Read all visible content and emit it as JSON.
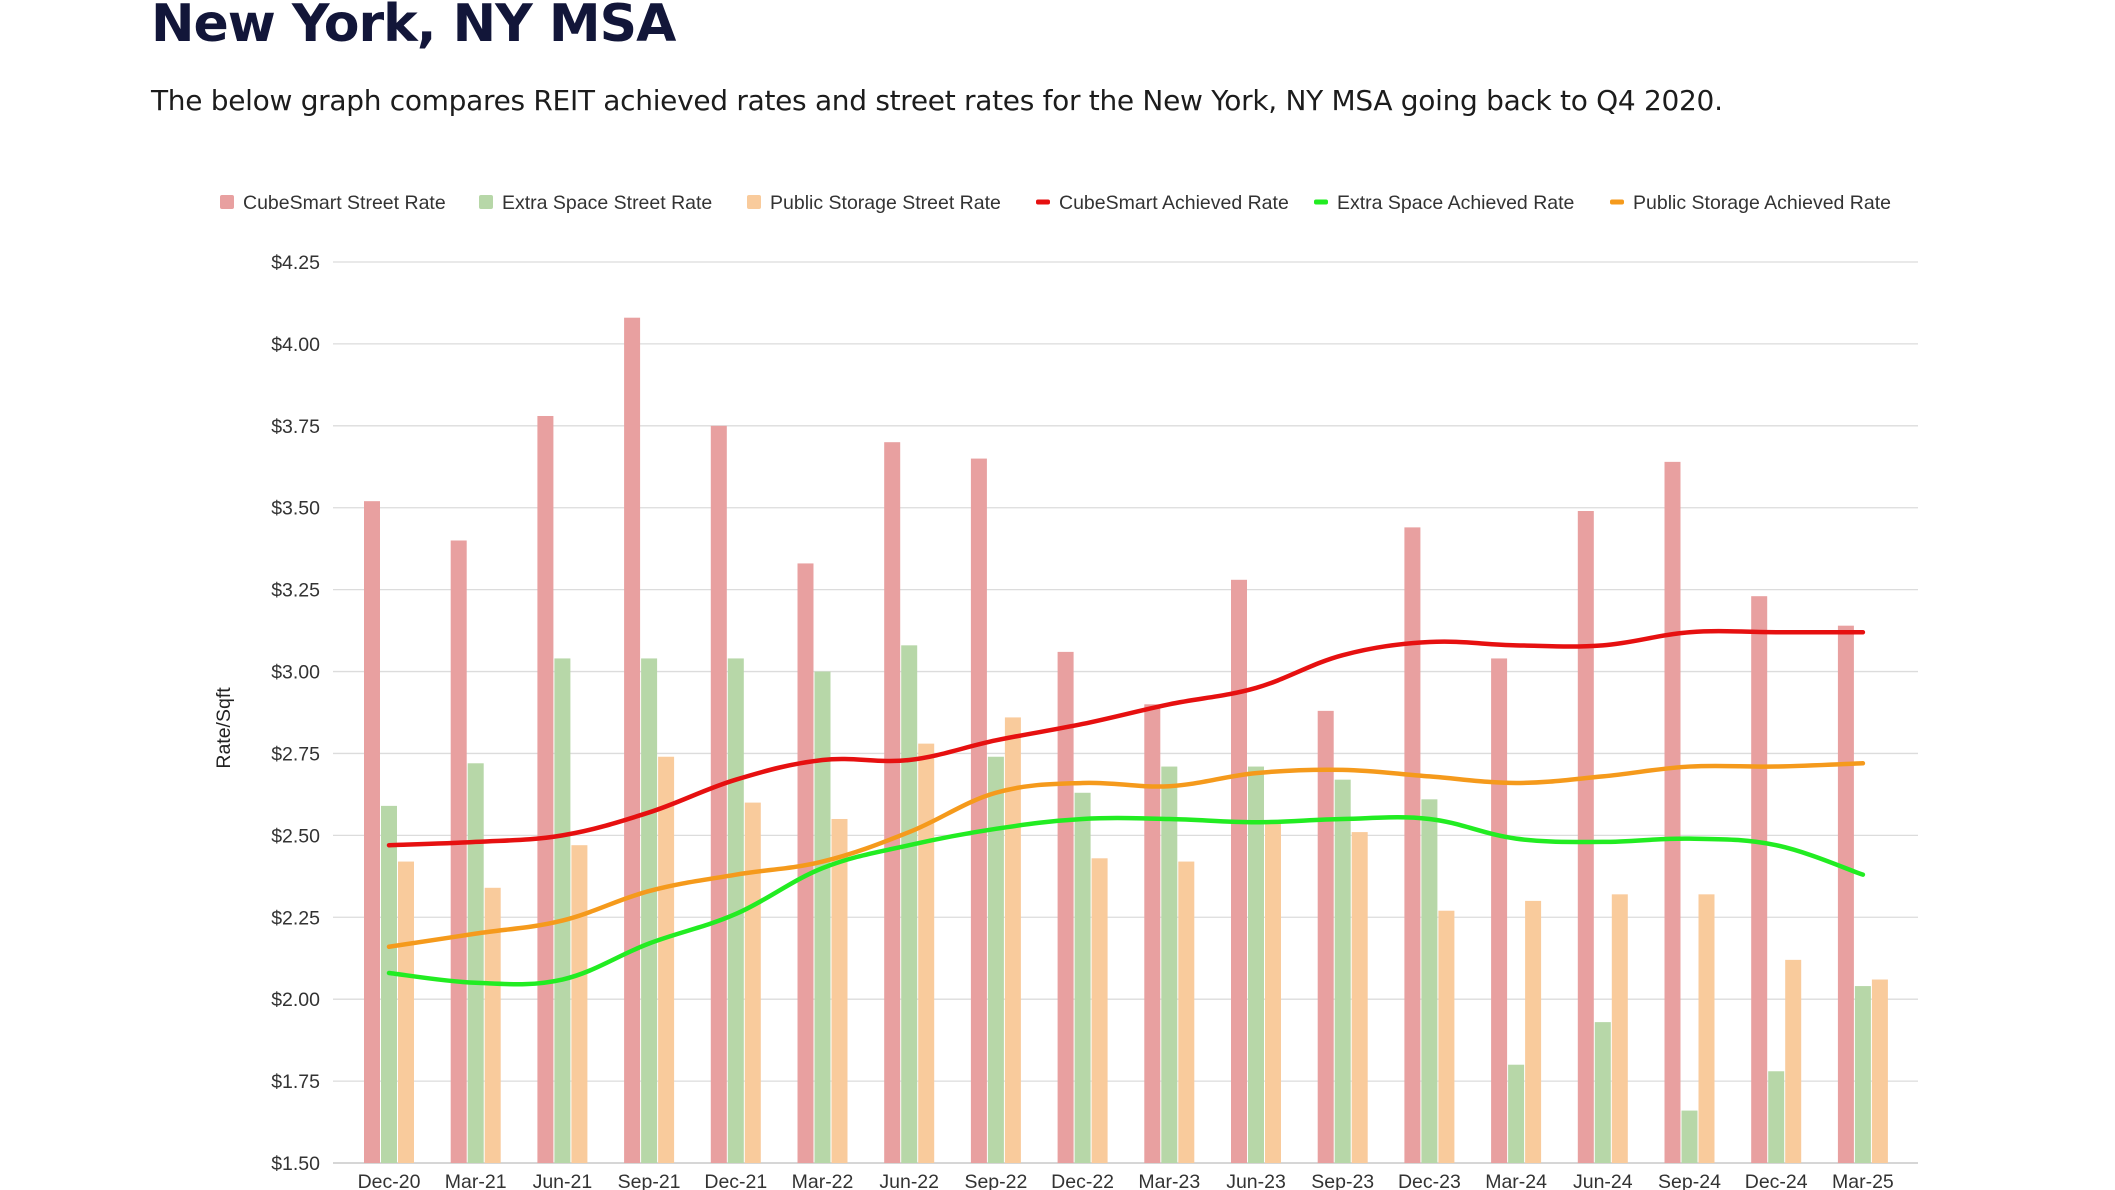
{
  "page": {
    "title": "New York, NY MSA",
    "subtitle": "The below graph compares REIT achieved rates and street rates for the New York, NY MSA going back to Q4 2020."
  },
  "chart_data": {
    "type": "bar",
    "title": "",
    "xlabel": "",
    "ylabel": "Rate/Sqft",
    "ylim": [
      1.5,
      4.25
    ],
    "yticks": [
      "$4.25",
      "$4.00",
      "$3.75",
      "$3.50",
      "$3.25",
      "$3.00",
      "$2.75",
      "$2.50",
      "$2.25",
      "$2.00",
      "$1.75",
      "$1.50"
    ],
    "grid": true,
    "legend_position": "top",
    "categories": [
      "Dec-20",
      "Mar-21",
      "Jun-21",
      "Sep-21",
      "Dec-21",
      "Mar-22",
      "Jun-22",
      "Sep-22",
      "Dec-22",
      "Mar-23",
      "Jun-23",
      "Sep-23",
      "Dec-23",
      "Mar-24",
      "Jun-24",
      "Sep-24",
      "Dec-24",
      "Mar-25"
    ],
    "bar_series": [
      {
        "name": "CubeSmart Street Rate",
        "color": "#e8a0a0",
        "values": [
          3.52,
          3.4,
          3.78,
          4.08,
          3.75,
          3.33,
          3.7,
          3.65,
          3.06,
          2.9,
          3.28,
          2.88,
          3.44,
          3.04,
          3.49,
          3.64,
          3.23,
          3.14
        ]
      },
      {
        "name": "Extra Space Street Rate",
        "color": "#b7d7a8",
        "values": [
          2.59,
          2.72,
          3.04,
          3.04,
          3.04,
          3.0,
          3.08,
          2.74,
          2.63,
          2.71,
          2.71,
          2.67,
          2.61,
          1.8,
          1.93,
          1.66,
          1.78,
          2.04
        ]
      },
      {
        "name": "Public Storage Street Rate",
        "color": "#f9cb9c",
        "values": [
          2.42,
          2.34,
          2.47,
          2.74,
          2.6,
          2.55,
          2.78,
          2.86,
          2.43,
          2.42,
          2.54,
          2.51,
          2.27,
          2.3,
          2.32,
          2.32,
          2.12,
          2.06
        ]
      }
    ],
    "line_series": [
      {
        "name": "CubeSmart Achieved Rate",
        "color": "#e61010",
        "values": [
          2.47,
          2.48,
          2.5,
          2.57,
          2.67,
          2.73,
          2.73,
          2.79,
          2.84,
          2.9,
          2.95,
          3.05,
          3.09,
          3.08,
          3.08,
          3.12,
          3.12,
          3.12
        ]
      },
      {
        "name": "Extra Space Achieved Rate",
        "color": "#22ec22",
        "values": [
          2.08,
          2.05,
          2.06,
          2.17,
          2.26,
          2.4,
          2.47,
          2.52,
          2.55,
          2.55,
          2.54,
          2.55,
          2.55,
          2.49,
          2.48,
          2.49,
          2.47,
          2.38
        ]
      },
      {
        "name": "Public Storage Achieved Rate",
        "color": "#f59a1c",
        "values": [
          2.16,
          2.2,
          2.24,
          2.33,
          2.38,
          2.42,
          2.51,
          2.63,
          2.66,
          2.65,
          2.69,
          2.7,
          2.68,
          2.66,
          2.68,
          2.71,
          2.71,
          2.72
        ]
      }
    ]
  }
}
